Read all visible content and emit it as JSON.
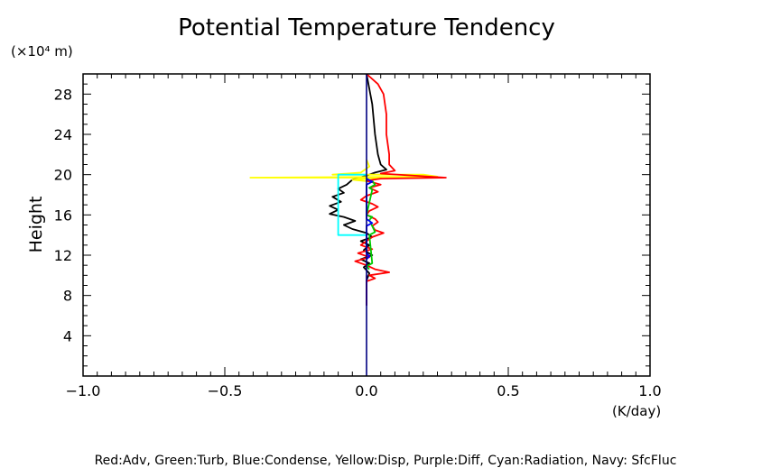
{
  "chart_data": {
    "type": "line",
    "title": "Potential Temperature Tendency",
    "ylabel": "Height",
    "y_unit": "(×10⁴ m)",
    "x_unit": "(K/day)",
    "legend_text": "Red:Adv, Green:Turb, Blue:Condense, Yellow:Disp, Purple:Diff, Cyan:Radiation, Navy: SfcFluc",
    "xlim": [
      -1.0,
      1.0
    ],
    "ylim": [
      0,
      30
    ],
    "x_ticks": [
      "−1.0",
      "−0.5",
      "0.0",
      "0.5",
      "1.0"
    ],
    "x_tick_values": [
      -1.0,
      -0.5,
      0.0,
      0.5,
      1.0
    ],
    "y_ticks": [
      "4",
      "8",
      "12",
      "16",
      "20",
      "24",
      "28"
    ],
    "y_tick_values": [
      4,
      8,
      12,
      16,
      20,
      24,
      28
    ],
    "grid": false,
    "series": [
      {
        "color": "#000000",
        "points": [
          [
            0.0,
            30
          ],
          [
            0.02,
            27
          ],
          [
            0.03,
            24
          ],
          [
            0.04,
            22
          ],
          [
            0.05,
            21
          ],
          [
            0.07,
            20.5
          ],
          [
            0.03,
            20.2
          ],
          [
            0.0,
            19.9
          ],
          [
            -0.05,
            19.5
          ],
          [
            -0.07,
            19.0
          ],
          [
            -0.1,
            18.6
          ],
          [
            -0.08,
            18.2
          ],
          [
            -0.12,
            17.8
          ],
          [
            -0.09,
            17.3
          ],
          [
            -0.13,
            16.9
          ],
          [
            -0.1,
            16.5
          ],
          [
            -0.13,
            16.1
          ],
          [
            -0.08,
            15.8
          ],
          [
            -0.04,
            15.4
          ],
          [
            -0.08,
            15.0
          ],
          [
            -0.05,
            14.6
          ],
          [
            0.0,
            14.2
          ],
          [
            0.02,
            13.8
          ],
          [
            -0.02,
            13.4
          ],
          [
            0.01,
            13.0
          ],
          [
            -0.01,
            12.5
          ],
          [
            0.02,
            12.0
          ],
          [
            -0.02,
            11.6
          ],
          [
            0.01,
            11.2
          ],
          [
            -0.01,
            10.8
          ],
          [
            0.01,
            10.2
          ],
          [
            0.0,
            9.5
          ],
          [
            0.0,
            7
          ]
        ]
      },
      {
        "color": "#ffff00",
        "points": [
          [
            0.0,
            21.5
          ],
          [
            0.01,
            20.8
          ],
          [
            -0.02,
            20.2
          ],
          [
            -0.12,
            20.0
          ],
          [
            0.2,
            20.0
          ],
          [
            0.25,
            19.8
          ],
          [
            -0.41,
            19.7
          ],
          [
            0.05,
            19.7
          ],
          [
            -0.05,
            19.5
          ],
          [
            0.02,
            19.3
          ],
          [
            0.0,
            19.0
          ]
        ]
      },
      {
        "color": "#00ffff",
        "points": [
          [
            0.0,
            20.0
          ],
          [
            -0.1,
            20.0
          ],
          [
            -0.1,
            14.0
          ],
          [
            0.0,
            14.0
          ]
        ]
      },
      {
        "color": "#ff0000",
        "points": [
          [
            0.0,
            30
          ],
          [
            0.04,
            29
          ],
          [
            0.06,
            28
          ],
          [
            0.07,
            26
          ],
          [
            0.07,
            24
          ],
          [
            0.08,
            22
          ],
          [
            0.08,
            21
          ],
          [
            0.1,
            20.4
          ],
          [
            0.05,
            20.1
          ],
          [
            0.28,
            19.7
          ],
          [
            0.05,
            19.6
          ],
          [
            0.0,
            19.4
          ],
          [
            0.05,
            19.0
          ],
          [
            0.01,
            18.7
          ],
          [
            0.04,
            18.3
          ],
          [
            0.0,
            17.9
          ],
          [
            -0.02,
            17.5
          ],
          [
            0.02,
            17.1
          ],
          [
            0.04,
            16.8
          ],
          [
            0.01,
            16.4
          ],
          [
            0.0,
            16.0
          ],
          [
            0.03,
            15.6
          ],
          [
            0.04,
            15.3
          ],
          [
            0.02,
            14.9
          ],
          [
            0.03,
            14.5
          ],
          [
            0.06,
            14.2
          ],
          [
            0.02,
            13.8
          ],
          [
            0.0,
            13.4
          ],
          [
            -0.02,
            13.0
          ],
          [
            0.02,
            12.6
          ],
          [
            -0.03,
            12.2
          ],
          [
            0.01,
            11.8
          ],
          [
            -0.04,
            11.4
          ],
          [
            0.0,
            11.0
          ],
          [
            0.03,
            10.6
          ],
          [
            0.08,
            10.3
          ],
          [
            0.01,
            10.0
          ],
          [
            0.03,
            9.7
          ],
          [
            0.0,
            9.4
          ],
          [
            0.0,
            7
          ]
        ]
      },
      {
        "color": "#00cc00",
        "points": [
          [
            0.02,
            19.4
          ],
          [
            0.03,
            19.0
          ],
          [
            0.01,
            18.7
          ],
          [
            0.02,
            18.5
          ],
          [
            0.0,
            16.0
          ],
          [
            0.02,
            15.8
          ],
          [
            0.01,
            15.5
          ],
          [
            0.03,
            14.3
          ],
          [
            0.01,
            14.0
          ],
          [
            0.02,
            11.2
          ],
          [
            0.0,
            10.9
          ],
          [
            0.01,
            10.6
          ]
        ]
      },
      {
        "color": "#0000ff",
        "points": [
          [
            0.0,
            19.6
          ],
          [
            0.02,
            19.3
          ],
          [
            0.0,
            19.0
          ],
          [
            0.0,
            15.6
          ],
          [
            0.02,
            15.2
          ],
          [
            0.0,
            14.9
          ],
          [
            0.0,
            12.2
          ],
          [
            0.01,
            11.9
          ],
          [
            0.0,
            11.6
          ]
        ]
      },
      {
        "color": "#800080",
        "points": [
          [
            0.0,
            10.0
          ],
          [
            0.0,
            7.0
          ]
        ]
      },
      {
        "color": "#000080",
        "points": [
          [
            0.0,
            0
          ],
          [
            0.0,
            30
          ]
        ]
      }
    ]
  }
}
